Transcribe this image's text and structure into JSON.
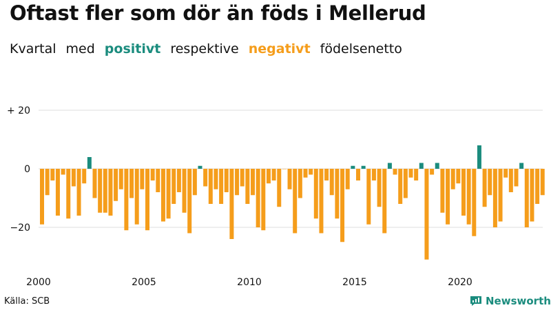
{
  "title": "Oftast fler som dör än föds i Mellerud",
  "subtitle": {
    "part1": "Kvartal",
    "part2": "med",
    "positive": "positivt",
    "part3": "respektive",
    "negative": "negativt",
    "part4": "födelsenetto"
  },
  "source": "Källa: SCB",
  "brand": "Newsworthy",
  "colors": {
    "positive": "#1b8c7e",
    "negative": "#f59d1b",
    "grid": "#dddddd",
    "text": "#111111",
    "brand": "#1b8c7e"
  },
  "chart_data": {
    "type": "bar",
    "title": "Oftast fler som dör än föds i Mellerud",
    "xlabel": "",
    "ylabel": "",
    "ylim": [
      -32,
      20
    ],
    "yticks": [
      {
        "value": 20,
        "label": "+ 20"
      },
      {
        "value": 0,
        "label": "0"
      },
      {
        "value": -20,
        "label": "−20"
      }
    ],
    "xticks": [
      {
        "year": 2000,
        "label": "2000"
      },
      {
        "year": 2005,
        "label": "2005"
      },
      {
        "year": 2010,
        "label": "2010"
      },
      {
        "year": 2015,
        "label": "2015"
      },
      {
        "year": 2020,
        "label": "2020"
      }
    ],
    "start_year": 2000,
    "periods_per_year": 4,
    "values": [
      -19,
      -9,
      -4,
      -16,
      -2,
      -17,
      -6,
      -16,
      -5,
      4,
      -10,
      -15,
      -15,
      -16,
      -11,
      -7,
      -21,
      -10,
      -19,
      -7,
      -21,
      -4,
      -8,
      -18,
      -17,
      -12,
      -8,
      -15,
      -22,
      -9,
      1,
      -6,
      -12,
      -7,
      -12,
      -8,
      -24,
      -9,
      -6,
      -12,
      -9,
      -20,
      -21,
      -5,
      -4,
      -13,
      0,
      -7,
      -22,
      -10,
      -3,
      -2,
      -17,
      -22,
      -4,
      -9,
      -17,
      -25,
      -7,
      1,
      -4,
      1,
      -19,
      -4,
      -13,
      -22,
      2,
      -2,
      -12,
      -10,
      -3,
      -4,
      2,
      -31,
      -2,
      2,
      -15,
      -19,
      -7,
      -5,
      -16,
      -19,
      -23,
      8,
      -13,
      -9,
      -20,
      -18,
      -3,
      -8,
      -6,
      2,
      -20,
      -18,
      -12,
      -9
    ]
  }
}
